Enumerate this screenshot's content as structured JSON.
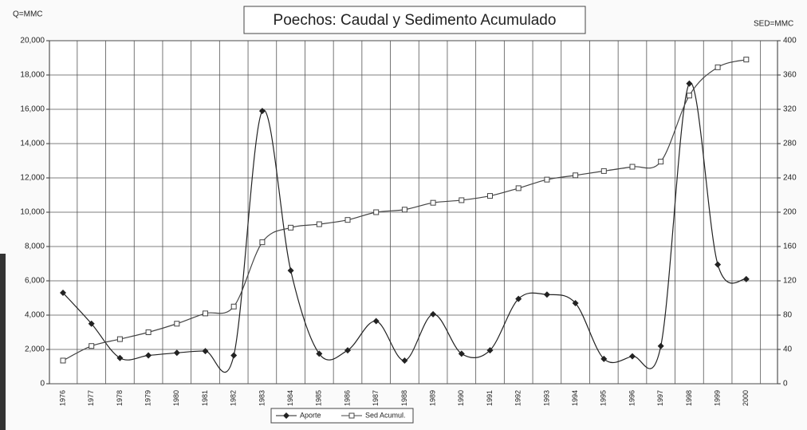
{
  "chart_data": {
    "type": "line",
    "title": "Poechos: Caudal y Sedimento Acumulado",
    "y_label": "Q=MMC",
    "y2_label": "SED=MMC",
    "categories": [
      "1976",
      "1977",
      "1978",
      "1979",
      "1980",
      "1981",
      "1982",
      "1983",
      "1984",
      "1985",
      "1986",
      "1987",
      "1988",
      "1989",
      "1990",
      "1991",
      "1992",
      "1993",
      "1994",
      "1995",
      "1996",
      "1997",
      "1998",
      "1999",
      "2000"
    ],
    "series": [
      {
        "name": "Aporte",
        "color": "#222222",
        "marker": "diamond",
        "axis": "y",
        "values": [
          5300,
          3500,
          1500,
          1650,
          1800,
          1900,
          1650,
          15900,
          6600,
          1750,
          1950,
          3650,
          1350,
          4050,
          1750,
          1950,
          4950,
          5200,
          4700,
          1450,
          1600,
          2200,
          17500,
          6950,
          6100
        ]
      },
      {
        "name": "Sed Acumul.",
        "color": "#444444",
        "marker": "square",
        "axis": "y2",
        "values": [
          27,
          44,
          52,
          60,
          70,
          82,
          90,
          165,
          182,
          186,
          191,
          200,
          203,
          211,
          214,
          219,
          228,
          238,
          243,
          248,
          253,
          259,
          336,
          369,
          378
        ]
      }
    ],
    "ylim": [
      0,
      20000
    ],
    "yticks": [
      0,
      {
        "value": 2000,
        "label": "2,000"
      },
      {
        "value": 4000,
        "label": "4,000"
      },
      {
        "value": 6000,
        "label": "6,000"
      },
      {
        "value": 8000,
        "label": "8,000"
      },
      {
        "value": 10000,
        "label": "10,000"
      },
      {
        "value": 12000,
        "label": "12,000"
      },
      {
        "value": 14000,
        "label": "14,000"
      },
      {
        "value": 16000,
        "label": "16,000"
      },
      {
        "value": 18000,
        "label": "18,000"
      },
      {
        "value": 20000,
        "label": "20,000"
      }
    ],
    "y2lim": [
      0,
      400
    ],
    "y2ticks": [
      0,
      40,
      80,
      120,
      160,
      200,
      240,
      280,
      320,
      360,
      400
    ],
    "grid": true,
    "legend": "bottom",
    "smooth": true
  }
}
